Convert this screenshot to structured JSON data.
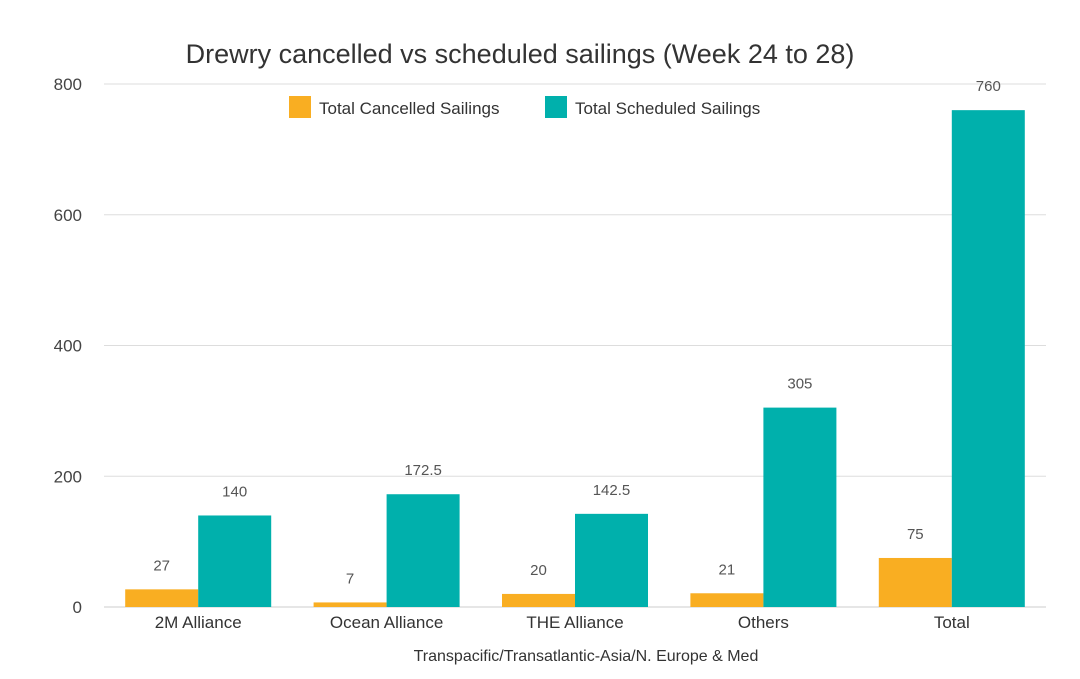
{
  "chart_data": {
    "type": "bar",
    "title": "Drewry cancelled vs scheduled sailings (Week 24 to 28)",
    "xlabel": "Transpacific/Transatlantic-Asia/N. Europe & Med",
    "ylabel": "",
    "categories": [
      "2M Alliance",
      "Ocean Alliance",
      "THE Alliance",
      "Others",
      "Total"
    ],
    "series": [
      {
        "name": "Total Cancelled Sailings",
        "color": "#F9AE22",
        "values": [
          27,
          7,
          20,
          21,
          75
        ],
        "labels": [
          "27",
          "7",
          "20",
          "21",
          "75"
        ]
      },
      {
        "name": "Total Scheduled Sailings",
        "color": "#00B0AC",
        "values": [
          140,
          172.5,
          142.5,
          305,
          760
        ],
        "labels": [
          "140",
          "172.5",
          "142.5",
          "305",
          "760"
        ]
      }
    ],
    "ylim": [
      0,
      800
    ],
    "yticks": [
      "0",
      "200",
      "400",
      "600",
      "800"
    ],
    "grid": true,
    "legend_position": "top"
  }
}
